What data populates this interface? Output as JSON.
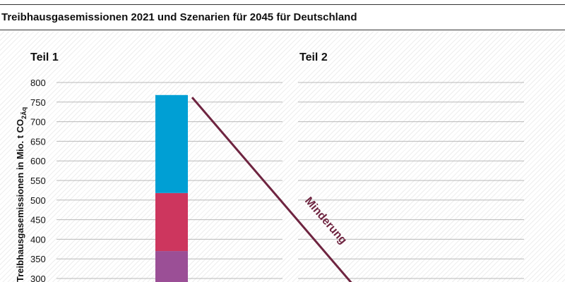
{
  "chart_data": {
    "type": "bar",
    "title": "Treibhausgasemissionen 2021 und Szenarien für 2045 für Deutschland",
    "ylabel": "Treibhausgasemissionen in Mio. t CO",
    "ylabel_sub": "2Äq",
    "ylim": [
      0,
      800
    ],
    "yticks": [
      "800",
      "750",
      "700",
      "650",
      "600",
      "550",
      "500",
      "450",
      "400",
      "350",
      "300"
    ],
    "grid": true,
    "panels": [
      {
        "label": "Teil 1"
      },
      {
        "label": "Teil 2"
      }
    ],
    "series": [
      {
        "values": [
          370
        ],
        "color": "#9b4f96"
      },
      {
        "values": [
          148
        ],
        "color": "#cd365e"
      },
      {
        "values": [
          250
        ],
        "color": "#009fd4"
      }
    ],
    "annotation": {
      "text": "Minderung",
      "from": 762,
      "color": "#6e2440"
    }
  }
}
